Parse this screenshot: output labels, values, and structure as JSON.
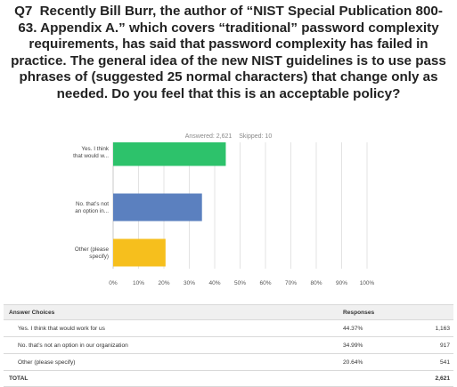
{
  "question": {
    "number": "Q7",
    "text": "Recently Bill Burr, the author of “NIST Special Publication 800-63. Appendix A.” which covers “traditional” password complexity requirements, has said that password complexity has failed in practice. The general idea of the new NIST guidelines is to use pass phrases of (suggested 25 normal characters) that change only as needed. Do you feel that this is an acceptable policy?"
  },
  "summary": {
    "answered": "Answered: 2,621",
    "skipped": "Skipped: 10"
  },
  "chart_data": {
    "type": "bar",
    "orientation": "horizontal",
    "categories": [
      [
        "Yes. I think",
        "that would w..."
      ],
      [
        "No. that’s not",
        "an option in..."
      ],
      [
        "Other (please",
        "specify)"
      ]
    ],
    "values": [
      44.37,
      34.99,
      20.64
    ],
    "colors": [
      "#2dc26b",
      "#5b80bf",
      "#f6bf1d"
    ],
    "xlim": [
      0,
      100
    ],
    "ticks": [
      "0%",
      "10%",
      "20%",
      "30%",
      "40%",
      "50%",
      "60%",
      "70%",
      "80%",
      "90%",
      "100%"
    ],
    "grid": true
  },
  "table": {
    "headers": {
      "choices": "Answer Choices",
      "responses": "Responses"
    },
    "rows": [
      {
        "choice": "Yes. I think that would work for us",
        "percent": "44.37%",
        "count": "1,163"
      },
      {
        "choice": "No. that’s not an option in our organization",
        "percent": "34.99%",
        "count": "917"
      },
      {
        "choice": "Other (please specify)",
        "percent": "20.64%",
        "count": "541"
      }
    ],
    "total": {
      "label": "TOTAL",
      "count": "2,621"
    }
  }
}
